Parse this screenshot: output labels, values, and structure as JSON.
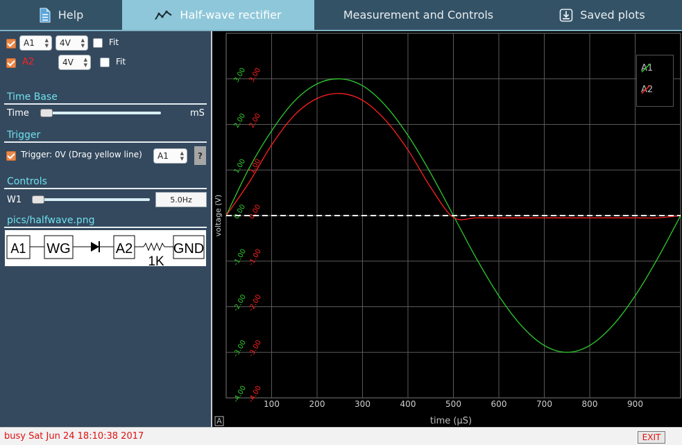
{
  "tabs": [
    {
      "label": "Help",
      "icon": "document-icon"
    },
    {
      "label": "Half-wave rectifier",
      "icon": "wave-chart-icon"
    },
    {
      "label": "Measurement and Controls",
      "icon": ""
    },
    {
      "label": "Saved plots",
      "icon": "download-icon"
    }
  ],
  "active_tab": "Half-wave rectifier",
  "controls": {
    "ch1": {
      "name": "A1",
      "range": "4V",
      "fit_label": "Fit",
      "checked": true
    },
    "ch2": {
      "name": "A2",
      "range": "4V",
      "fit_label": "Fit",
      "checked": true,
      "color": "#ff2020"
    },
    "timebase": {
      "section": "Time Base",
      "label": "Time",
      "unit": "mS"
    },
    "trigger": {
      "section": "Trigger",
      "label": "Trigger: 0V (Drag yellow line)",
      "source": "A1",
      "help_label": "?"
    },
    "ctrl": {
      "section": "Controls",
      "label": "W1",
      "value": "5.0Hz"
    },
    "image_title": "pics/halfwave.png",
    "schematic": {
      "a1": "A1",
      "wg": "WG",
      "a2": "A2",
      "gnd": "GND",
      "resistor": "1K"
    }
  },
  "plot": {
    "legend": [
      {
        "name": "A1",
        "color": "#2ecc2e"
      },
      {
        "name": "A2",
        "color": "#ff2020"
      }
    ],
    "y_label": "voltage (V)",
    "x_label": "time (µS)",
    "corner_label": "A",
    "x_ticks": [
      "100",
      "200",
      "300",
      "400",
      "500",
      "600",
      "700",
      "800",
      "900"
    ],
    "y_ticks": [
      "3.00",
      "2.00",
      "1.00",
      "0.00",
      "-1.00",
      "-2.00",
      "-3.00",
      "-4.00"
    ]
  },
  "chart_data": {
    "type": "line",
    "xlabel": "time (µS)",
    "ylabel": "voltage (V)",
    "xlim": [
      0,
      1000
    ],
    "ylim": [
      -4,
      4
    ],
    "grid": true,
    "legend_position": "top-right",
    "series": [
      {
        "name": "A1",
        "color": "#2ecc2e",
        "x": [
          0,
          50,
          100,
          150,
          200,
          250,
          300,
          350,
          400,
          450,
          500,
          550,
          600,
          650,
          700,
          750,
          800,
          850,
          900,
          950,
          1000
        ],
        "values": [
          0,
          1.03,
          1.86,
          2.51,
          2.89,
          3.0,
          2.85,
          2.42,
          1.76,
          0.93,
          0.0,
          -0.93,
          -1.76,
          -2.42,
          -2.85,
          -3.0,
          -2.85,
          -2.42,
          -1.76,
          -0.93,
          0.0
        ]
      },
      {
        "name": "A2",
        "color": "#ff2020",
        "x": [
          0,
          50,
          100,
          150,
          200,
          250,
          300,
          350,
          400,
          450,
          500,
          550,
          600,
          650,
          700,
          750,
          800,
          850,
          900,
          950,
          1000
        ],
        "values": [
          0,
          0.72,
          1.55,
          2.2,
          2.57,
          2.68,
          2.53,
          2.1,
          1.44,
          0.62,
          -0.04,
          -0.05,
          -0.05,
          -0.05,
          -0.05,
          -0.05,
          -0.05,
          -0.05,
          -0.05,
          -0.05,
          0.0
        ]
      }
    ],
    "trigger_level": 0
  },
  "status": {
    "text": "busy Sat Jun 24 18:10:38 2017",
    "exit_label": "EXIT"
  }
}
